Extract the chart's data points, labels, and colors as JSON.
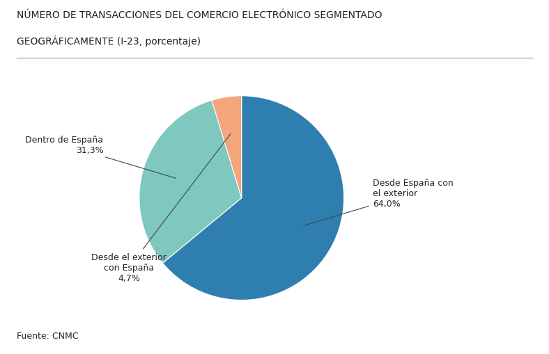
{
  "title_line1": "NÚMERO DE TRANSACCIONES DEL COMERCIO ELECTRÓNICO SEGMENTADO",
  "title_line2": "GEOGRÁFICAMENTE (I-23, porcentaje)",
  "slices": [
    {
      "label": "Desde España con\nel exterior\n64,0%",
      "value": 64.0,
      "color": "#2e7faf"
    },
    {
      "label": "Dentro de España\n31,3%",
      "value": 31.3,
      "color": "#7ec8c0"
    },
    {
      "label": "Desde el exterior\ncon España\n4,7%",
      "value": 4.7,
      "color": "#f4a57a"
    }
  ],
  "footnote": "Fuente: CNMC",
  "start_angle": 90,
  "background_color": "#ffffff",
  "title_fontsize": 10,
  "label_fontsize": 9,
  "footnote_fontsize": 9
}
